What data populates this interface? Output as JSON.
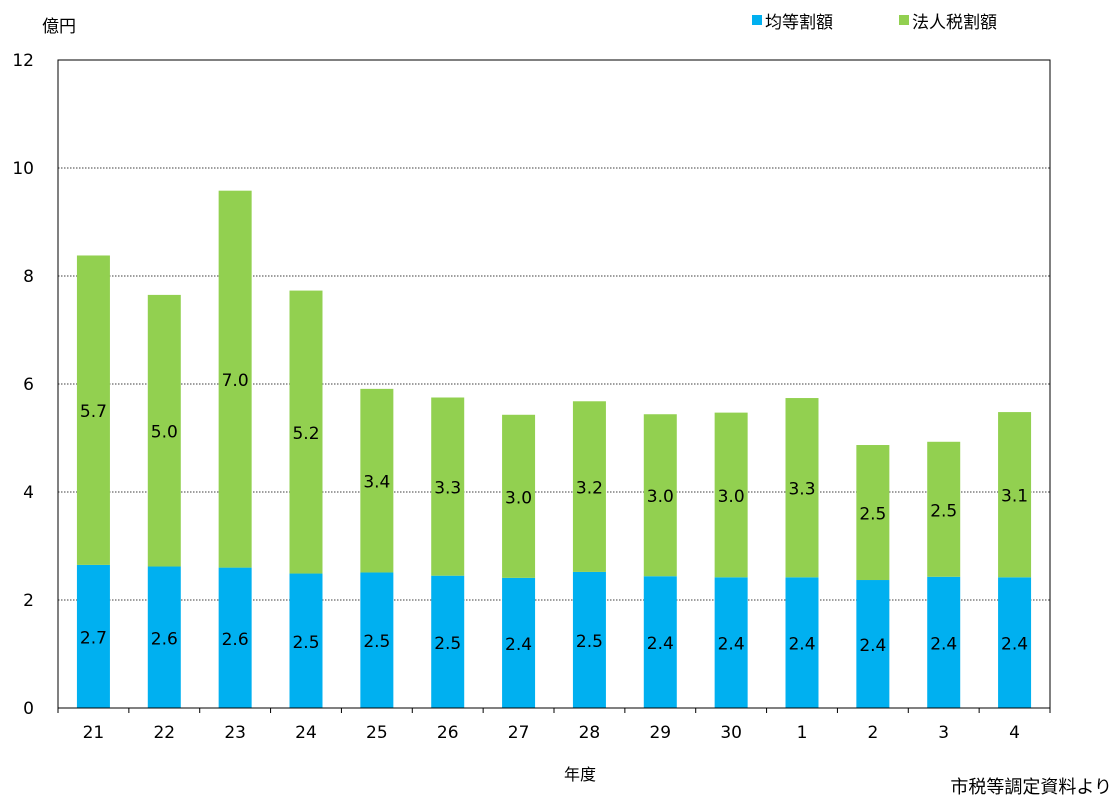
{
  "chart_data": {
    "type": "bar",
    "stacked": true,
    "title": "",
    "ylabel": "億円",
    "xlabel": "年度",
    "source": "市税等調定資料より",
    "ylim": [
      0,
      12
    ],
    "yticks": [
      0,
      2,
      4,
      6,
      8,
      10,
      12
    ],
    "grid": true,
    "legend_position": "top-right",
    "categories": [
      "21",
      "22",
      "23",
      "24",
      "25",
      "26",
      "27",
      "28",
      "29",
      "30",
      "1",
      "2",
      "3",
      "4"
    ],
    "series": [
      {
        "name": "均等割額",
        "color": "#00b0f0",
        "values": [
          2.65,
          2.62,
          2.6,
          2.49,
          2.51,
          2.45,
          2.41,
          2.52,
          2.44,
          2.42,
          2.42,
          2.37,
          2.43,
          2.42
        ],
        "labels": [
          "2.7",
          "2.6",
          "2.6",
          "2.5",
          "2.5",
          "2.5",
          "2.4",
          "2.5",
          "2.4",
          "2.4",
          "2.4",
          "2.4",
          "2.4",
          "2.4"
        ]
      },
      {
        "name": "法人税割額",
        "color": "#92d050",
        "values": [
          5.73,
          5.03,
          6.98,
          5.24,
          3.4,
          3.3,
          3.02,
          3.16,
          3.0,
          3.05,
          3.32,
          2.5,
          2.5,
          3.06
        ],
        "labels": [
          "5.7",
          "5.0",
          "7.0",
          "5.2",
          "3.4",
          "3.3",
          "3.0",
          "3.2",
          "3.0",
          "3.0",
          "3.3",
          "2.5",
          "2.5",
          "3.1"
        ]
      }
    ]
  }
}
